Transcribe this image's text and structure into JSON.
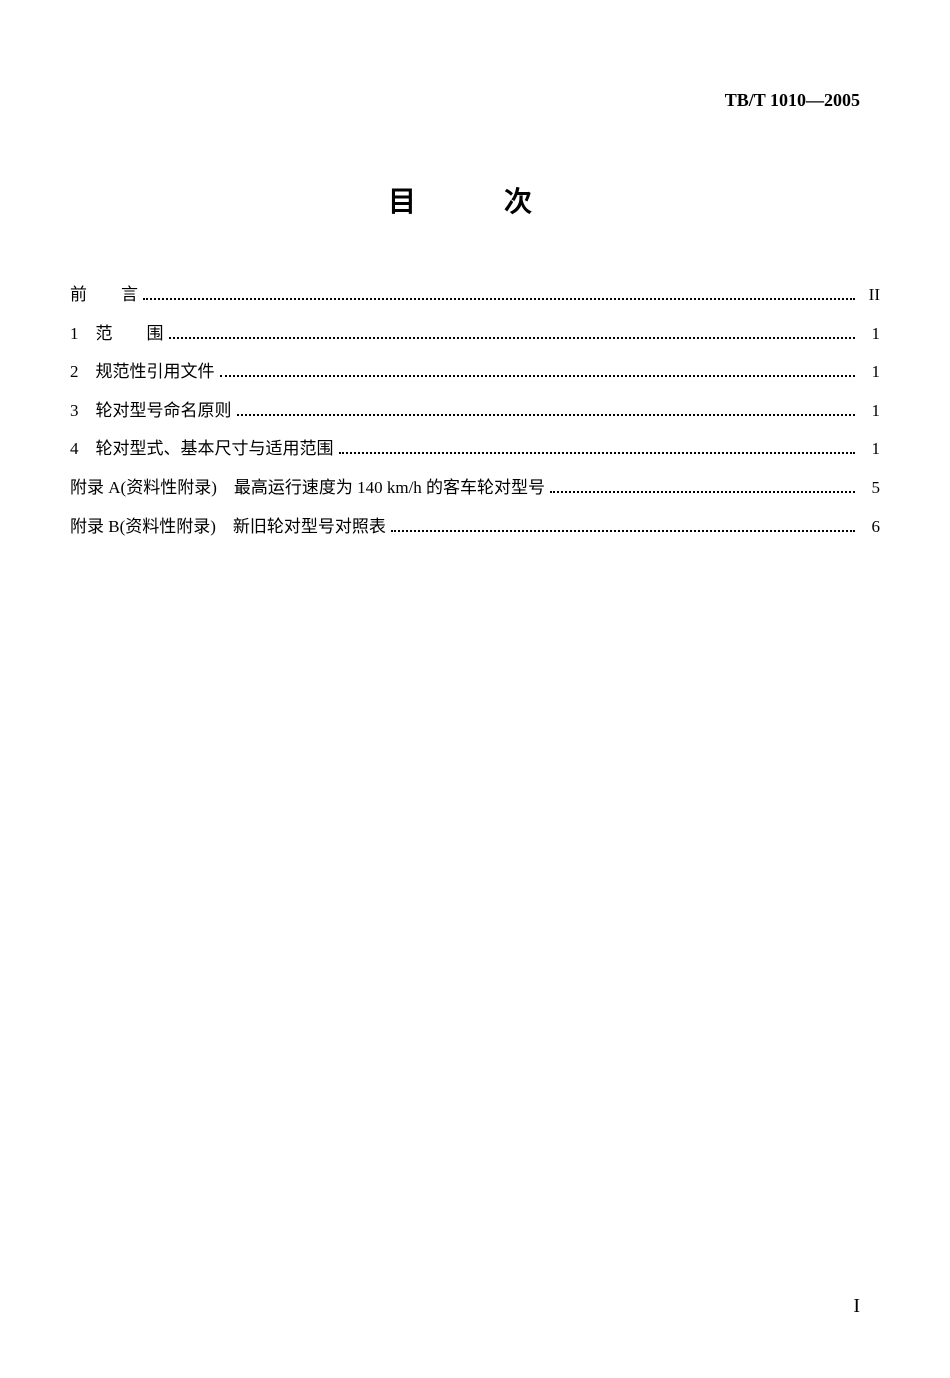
{
  "document": {
    "standard_code": "TB/T 1010—2005",
    "title": "目　次",
    "page_number": "I",
    "toc_entries": [
      {
        "label": "前　　言",
        "page": "II"
      },
      {
        "label": "1　范　　围",
        "page": "1"
      },
      {
        "label": "2　规范性引用文件",
        "page": "1"
      },
      {
        "label": "3　轮对型号命名原则",
        "page": "1"
      },
      {
        "label": "4　轮对型式、基本尺寸与适用范围",
        "page": "1"
      },
      {
        "label": "附录 A(资料性附录)　最高运行速度为 140 km/h 的客车轮对型号",
        "page": "5"
      },
      {
        "label": "附录 B(资料性附录)　新旧轮对型号对照表",
        "page": "6"
      }
    ]
  },
  "styling": {
    "background_color": "#ffffff",
    "text_color": "#000000",
    "title_fontsize": 28,
    "body_fontsize": 17,
    "header_fontsize": 18,
    "page_number_fontsize": 20,
    "font_family": "SimSun"
  }
}
